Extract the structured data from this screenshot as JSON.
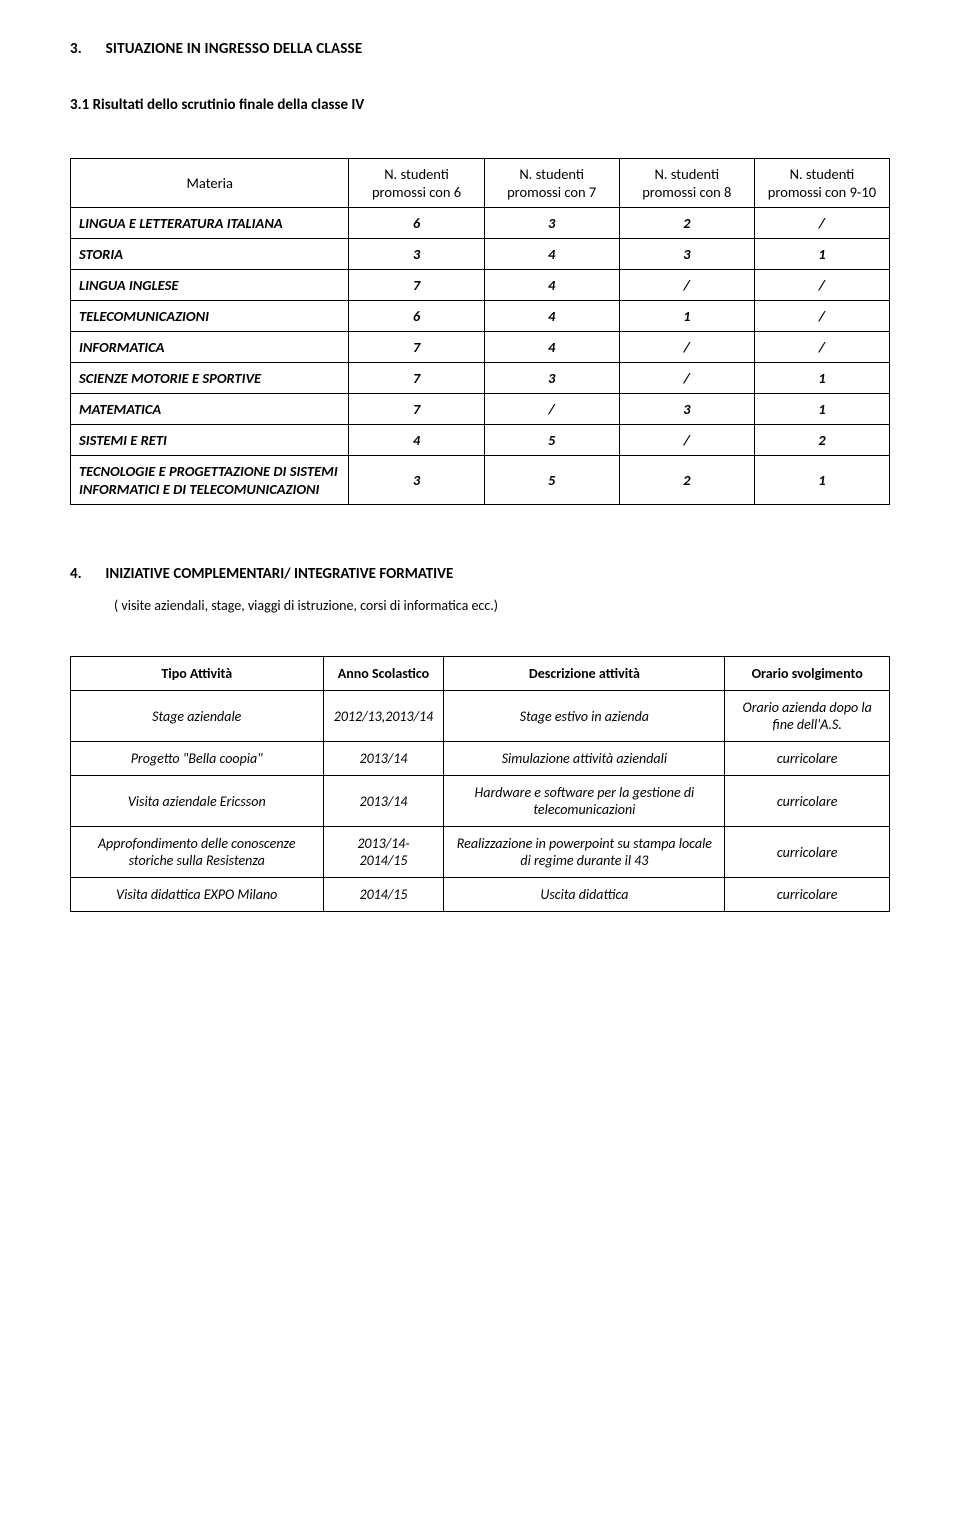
{
  "section3": {
    "num": "3.",
    "title": "SITUAZIONE IN INGRESSO DELLA  CLASSE",
    "sub_num_title": "3.1  Risultati dello scrutinio finale della classe IV",
    "table": {
      "header_materia": "Materia",
      "col_labels": [
        "N. studenti promossi con 6",
        "N. studenti promossi con 7",
        "N. studenti promossi con 8",
        "N. studenti promossi con 9-10"
      ],
      "rows": [
        {
          "label": "LINGUA E LETTERATURA ITALIANA",
          "v": [
            "6",
            "3",
            "2",
            "/"
          ]
        },
        {
          "label": "STORIA",
          "v": [
            "3",
            "4",
            "3",
            "1"
          ]
        },
        {
          "label": "LINGUA INGLESE",
          "v": [
            "7",
            "4",
            "/",
            "/"
          ]
        },
        {
          "label": "TELECOMUNICAZIONI",
          "v": [
            "6",
            "4",
            "1",
            "/"
          ]
        },
        {
          "label": "INFORMATICA",
          "v": [
            "7",
            "4",
            "/",
            "/"
          ]
        },
        {
          "label": "SCIENZE MOTORIE E SPORTIVE",
          "v": [
            "7",
            "3",
            "/",
            "1"
          ]
        },
        {
          "label": "MATEMATICA",
          "v": [
            "7",
            "/",
            "3",
            "1"
          ]
        },
        {
          "label": "SISTEMI E RETI",
          "v": [
            "4",
            "5",
            "/",
            "2"
          ]
        },
        {
          "label": "TECNOLOGIE E PROGETTAZIONE DI SISTEMI INFORMATICI E DI TELECOMUNICAZIONI",
          "v": [
            "3",
            "5",
            "2",
            "1"
          ]
        }
      ]
    }
  },
  "section4": {
    "num": "4.",
    "title": "INIZIATIVE COMPLEMENTARI/ INTEGRATIVE FORMATIVE",
    "sub": "( visite aziendali, stage, viaggi di istruzione, corsi di informatica ecc.)",
    "table": {
      "cols": [
        "Tipo Attività",
        "Anno Scolastico",
        "Descrizione attività",
        "Orario svolgimento"
      ],
      "rows": [
        {
          "c": [
            "Stage aziendale",
            "2012/13,2013/14",
            "Stage estivo in azienda",
            "Orario azienda dopo la fine dell'A.S."
          ],
          "it": [
            true,
            true,
            true,
            true
          ]
        },
        {
          "c": [
            "Progetto \"Bella coopia\"",
            "2013/14",
            "Simulazione attività aziendali",
            "curricolare"
          ],
          "it": [
            true,
            true,
            true,
            true
          ]
        },
        {
          "c": [
            "Visita aziendale Ericsson",
            "2013/14",
            "Hardware e software per la gestione di telecomunicazioni",
            "curricolare"
          ],
          "it": [
            true,
            true,
            true,
            true
          ]
        },
        {
          "c": [
            "Approfondimento delle conoscenze storiche sulla Resistenza",
            "2013/14-2014/15",
            "Realizzazione in powerpoint su stampa locale di regime durante il 43",
            "curricolare"
          ],
          "it": [
            true,
            true,
            true,
            true
          ]
        },
        {
          "c": [
            "Visita didattica EXPO Milano",
            "2014/15",
            "Uscita didattica",
            "curricolare"
          ],
          "it": [
            true,
            true,
            true,
            true
          ]
        }
      ]
    }
  }
}
